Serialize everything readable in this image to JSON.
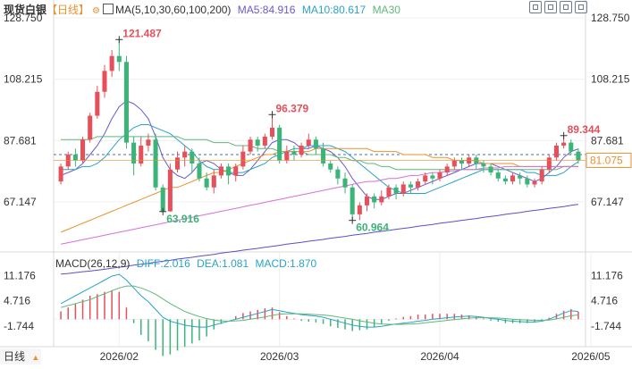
{
  "header": {
    "instrument": "现货白银",
    "period": "【日线】",
    "indicator_label": "MA(5,10,30,60,100,200)",
    "ma5": "MA5:84.916",
    "ma10": "MA10:80.617",
    "ma30": "MA30"
  },
  "macd_header": {
    "label": "MACD(26,12,9)",
    "diff": "DIFF:2.016",
    "dea": "DEA:1.081",
    "macd": "MACD:1.870"
  },
  "footer": {
    "period_button": "日线",
    "period_arrow": "▲"
  },
  "toolbar_icons": [
    "crosshair-icon",
    "zoom-in-icon",
    "zoom-out-icon",
    "fullscreen-icon"
  ],
  "colors": {
    "up": "#e6505a",
    "down": "#3cb478",
    "ma5": "#6a5acd",
    "ma10": "#29a3c4",
    "ma30": "#5fb87a",
    "ma60": "#e8922e",
    "ma100": "#d96fd9",
    "ma200": "#5b4fc7",
    "current_price": "#e8922e",
    "dashed_level": "#4a6fa5"
  },
  "chart_data": {
    "type": "candlestick",
    "price_axis": {
      "ticks": [
        "128.750",
        "108.215",
        "87.681",
        "67.147"
      ],
      "ylim": [
        51,
        128.75
      ]
    },
    "date_axis": {
      "ticks": [
        "2026/02",
        "2026/03",
        "2026/04",
        "2026/05"
      ]
    },
    "annotations": [
      {
        "text": "121.487",
        "value": 121.487,
        "kind": "high"
      },
      {
        "text": "63.916",
        "value": 63.916,
        "kind": "low"
      },
      {
        "text": "96.379",
        "value": 96.379,
        "kind": "high"
      },
      {
        "text": "60.964",
        "value": 60.964,
        "kind": "low"
      },
      {
        "text": "89.344",
        "value": 89.344,
        "kind": "high"
      }
    ],
    "current_price": {
      "text": "81.075",
      "value": 81.075
    },
    "dashed_level": 83.0,
    "candles": [
      [
        74,
        79,
        73,
        80
      ],
      [
        79,
        83,
        78,
        84
      ],
      [
        83,
        81,
        79,
        85
      ],
      [
        81,
        88,
        80,
        89
      ],
      [
        88,
        96,
        87,
        97
      ],
      [
        96,
        104,
        95,
        106
      ],
      [
        104,
        111,
        102,
        113
      ],
      [
        111,
        116,
        109,
        118
      ],
      [
        116,
        114,
        111,
        121.5
      ],
      [
        114,
        87,
        85,
        116
      ],
      [
        87,
        80,
        76,
        89
      ],
      [
        80,
        86,
        79,
        89
      ],
      [
        86,
        88,
        84,
        90
      ],
      [
        88,
        72,
        71,
        90
      ],
      [
        72,
        64,
        63.9,
        73
      ],
      [
        64,
        78,
        63.9,
        80
      ],
      [
        78,
        82,
        77,
        84
      ],
      [
        82,
        84,
        79,
        86
      ],
      [
        84,
        80,
        77,
        85
      ],
      [
        80,
        75,
        74,
        82
      ],
      [
        75,
        72,
        71,
        77
      ],
      [
        72,
        76,
        70,
        78
      ],
      [
        76,
        79,
        75,
        80
      ],
      [
        79,
        76,
        73,
        80
      ],
      [
        76,
        79,
        74,
        80
      ],
      [
        79,
        84,
        78,
        86
      ],
      [
        84,
        88,
        83,
        89
      ],
      [
        88,
        86,
        84,
        89
      ],
      [
        86,
        89,
        85,
        90
      ],
      [
        89,
        92,
        88,
        96.4
      ],
      [
        92,
        81,
        80,
        93
      ],
      [
        81,
        84,
        80,
        86
      ],
      [
        84,
        83,
        81,
        86
      ],
      [
        83,
        86,
        82,
        87
      ],
      [
        86,
        88,
        85,
        90
      ],
      [
        88,
        85,
        83,
        89
      ],
      [
        85,
        80,
        79,
        87
      ],
      [
        80,
        78,
        77,
        81
      ],
      [
        78,
        75,
        73,
        79
      ],
      [
        75,
        72,
        70,
        77
      ],
      [
        72,
        63,
        61,
        73
      ],
      [
        63,
        66,
        61,
        67
      ],
      [
        66,
        69,
        64,
        70
      ],
      [
        69,
        67,
        65,
        70
      ],
      [
        67,
        69,
        66,
        71
      ],
      [
        69,
        72,
        68,
        73
      ],
      [
        72,
        70,
        68,
        73
      ],
      [
        70,
        73,
        69,
        74
      ],
      [
        73,
        72,
        70,
        74
      ],
      [
        72,
        74,
        71,
        75
      ],
      [
        74,
        76,
        73,
        77
      ],
      [
        76,
        75,
        73,
        77
      ],
      [
        75,
        77,
        74,
        78
      ],
      [
        77,
        79,
        76,
        80
      ],
      [
        79,
        81,
        78,
        82
      ],
      [
        81,
        80,
        78,
        82
      ],
      [
        80,
        82,
        79,
        83
      ],
      [
        82,
        80,
        78,
        83
      ],
      [
        80,
        79,
        77,
        81
      ],
      [
        79,
        77,
        76,
        80
      ],
      [
        77,
        75,
        74,
        78
      ],
      [
        75,
        74,
        73,
        76
      ],
      [
        74,
        76,
        73,
        77
      ],
      [
        76,
        75,
        73,
        77
      ],
      [
        75,
        73,
        72,
        76
      ],
      [
        73,
        74,
        72,
        75
      ],
      [
        74,
        78,
        73,
        79
      ],
      [
        78,
        82,
        77,
        83
      ],
      [
        82,
        86,
        81,
        87
      ],
      [
        86,
        87,
        85,
        89.3
      ],
      [
        87,
        84,
        83,
        88
      ],
      [
        84,
        81,
        80,
        85
      ]
    ],
    "ma_series": [
      {
        "name": "MA5",
        "values": [
          76,
          77,
          78,
          80,
          83,
          86,
          90,
          95,
          99,
          101,
          100,
          98,
          95,
          89,
          82,
          78,
          76,
          75,
          77,
          80,
          81,
          80,
          78,
          77,
          76,
          76,
          78,
          81,
          84,
          87,
          88,
          88,
          87,
          85,
          85,
          86,
          85,
          84,
          82,
          79,
          75,
          72,
          69,
          68,
          68,
          69,
          70,
          70,
          71,
          72,
          73,
          74,
          75,
          76,
          77,
          78,
          79,
          80,
          80,
          80,
          79,
          78,
          77,
          76,
          75,
          74,
          75,
          77,
          79,
          82,
          84,
          84.9
        ]
      },
      {
        "name": "MA10",
        "values": [
          78,
          78,
          78,
          79,
          79,
          80,
          82,
          85,
          88,
          90,
          92,
          93,
          93,
          92,
          91,
          90,
          88,
          86,
          84,
          81,
          79,
          78,
          78,
          77,
          77,
          77,
          78,
          79,
          80,
          82,
          83,
          84,
          85,
          85,
          86,
          86,
          86,
          86,
          85,
          84,
          82,
          80,
          78,
          76,
          74,
          72,
          71,
          70,
          70,
          70,
          70,
          71,
          72,
          73,
          74,
          75,
          76,
          77,
          78,
          78,
          78,
          78,
          78,
          78,
          77,
          77,
          76,
          76,
          76,
          77,
          79,
          80.6
        ]
      },
      {
        "name": "MA30",
        "values": [
          88,
          88,
          88,
          88,
          88,
          89,
          89,
          89,
          89,
          89,
          89,
          89,
          89,
          89,
          89,
          89,
          89,
          88,
          88,
          88,
          88,
          87,
          87,
          87,
          86,
          86,
          86,
          85,
          85,
          85,
          84,
          84,
          84,
          84,
          83,
          83,
          83,
          83,
          82,
          82,
          81,
          81,
          80,
          80,
          79,
          79,
          78,
          78,
          78,
          78,
          78,
          78,
          78,
          78,
          78,
          78,
          78,
          78,
          78,
          78,
          78,
          78,
          78,
          78,
          78,
          78,
          78,
          78,
          78,
          79,
          79,
          79
        ]
      },
      {
        "name": "MA60",
        "values": [
          57,
          58,
          59,
          60,
          61,
          62,
          63,
          64,
          65,
          66,
          67,
          68,
          69,
          70,
          71,
          72,
          72,
          73,
          74,
          75,
          76,
          77,
          77,
          78,
          79,
          80,
          81,
          82,
          83,
          83,
          84,
          84,
          84,
          84,
          84,
          85,
          85,
          85,
          85,
          85,
          85,
          85,
          85,
          84,
          84,
          84,
          84,
          83,
          83,
          83,
          83,
          82,
          82,
          82,
          81,
          81,
          81,
          81,
          80,
          80,
          80,
          80,
          80,
          79,
          79,
          79,
          79,
          79,
          79,
          79,
          79,
          79
        ]
      },
      {
        "name": "MA100",
        "values": [
          53,
          53.5,
          54,
          54.5,
          55,
          55.5,
          56,
          56.5,
          57,
          57.5,
          58,
          58.5,
          59,
          59.5,
          60,
          60.5,
          61,
          61.5,
          62,
          62.5,
          63,
          63.5,
          64,
          64.5,
          65,
          65.5,
          66,
          66.5,
          67,
          67.5,
          68,
          68.5,
          69,
          69.5,
          70,
          70.5,
          71,
          71.5,
          72,
          72.5,
          73,
          73.5,
          74,
          74,
          74.5,
          75,
          75,
          75.5,
          76,
          76,
          76.5,
          77,
          77,
          77.5,
          77.5,
          78,
          78,
          78,
          78.5,
          78.5,
          78.5,
          79,
          79,
          79,
          79,
          79,
          79,
          79,
          79,
          79,
          79,
          79
        ]
      },
      {
        "name": "MA200",
        "values": [
          43,
          43.2,
          43.5,
          43.8,
          44,
          44.3,
          44.6,
          45,
          45.3,
          45.6,
          46,
          46.3,
          46.6,
          47,
          47.3,
          47.6,
          48,
          48.3,
          48.6,
          49,
          49.3,
          49.6,
          50,
          50.3,
          50.6,
          51,
          51.3,
          51.6,
          52,
          52.3,
          52.6,
          53,
          53.3,
          53.6,
          54,
          54.3,
          54.6,
          55,
          55.3,
          55.6,
          56,
          56.3,
          56.6,
          57,
          57.3,
          57.6,
          58,
          58.3,
          58.6,
          59,
          59.3,
          59.6,
          60,
          60.3,
          60.6,
          61,
          61.3,
          61.6,
          62,
          62.3,
          62.6,
          63,
          63.3,
          63.6,
          64,
          64.3,
          64.6,
          65,
          65.3,
          65.6,
          66,
          66.3
        ]
      }
    ],
    "macd": {
      "axis_ticks": [
        "11.176",
        "4.716",
        "-1.744"
      ],
      "ylim": [
        -7,
        14
      ],
      "diff": [
        4,
        5,
        6,
        7,
        8,
        9,
        10,
        11,
        11.5,
        10,
        8,
        6,
        4.5,
        2.5,
        0.5,
        -0.5,
        -1,
        -1.5,
        -1.8,
        -2,
        -2,
        -1.5,
        -1,
        -0.5,
        0,
        0.5,
        1,
        1.5,
        2,
        2.5,
        2.2,
        1.8,
        1.5,
        1.2,
        1,
        0.8,
        0.5,
        0,
        -0.5,
        -1,
        -1.5,
        -1.8,
        -2,
        -2,
        -1.8,
        -1.5,
        -1.2,
        -1,
        -0.8,
        -0.5,
        -0.3,
        0,
        0.2,
        0.4,
        0.6,
        0.7,
        0.8,
        0.7,
        0.5,
        0.2,
        0,
        -0.3,
        -0.5,
        -0.6,
        -0.7,
        -0.7,
        -0.5,
        0,
        0.8,
        1.6,
        2.2,
        2.0
      ],
      "dea": [
        3,
        3.5,
        4,
        4.5,
        5,
        5.8,
        6.5,
        7.3,
        8,
        8.5,
        8.5,
        8,
        7.3,
        6.4,
        5.2,
        4,
        3,
        2,
        1.3,
        0.7,
        0.2,
        -0.2,
        -0.4,
        -0.5,
        -0.4,
        -0.3,
        0,
        0.3,
        0.6,
        1,
        1.3,
        1.4,
        1.4,
        1.4,
        1.3,
        1.2,
        1.1,
        0.9,
        0.6,
        0.3,
        0,
        -0.4,
        -0.7,
        -1,
        -1.2,
        -1.3,
        -1.3,
        -1.3,
        -1.2,
        -1.1,
        -0.9,
        -0.7,
        -0.5,
        -0.3,
        -0.1,
        0.1,
        0.3,
        0.4,
        0.4,
        0.4,
        0.3,
        0.2,
        0,
        -0.1,
        -0.2,
        -0.3,
        -0.3,
        -0.2,
        0.1,
        0.5,
        0.9,
        1.1
      ],
      "hist": [
        2,
        3,
        4,
        5,
        6,
        6.4,
        7,
        7.4,
        7,
        3,
        -1,
        -4,
        -5.6,
        -7.8,
        -9.4,
        -9,
        -8,
        -7,
        -6.2,
        -5.4,
        -4.4,
        -2.6,
        -1.2,
        0,
        0.8,
        1.6,
        2,
        2.4,
        2.8,
        3,
        1.8,
        0.8,
        0.2,
        -0.4,
        -0.6,
        -0.8,
        -1.2,
        -1.8,
        -2.2,
        -2.6,
        -3,
        -2.8,
        -2.6,
        -2,
        -1.2,
        -0.4,
        0.2,
        0.6,
        0.8,
        1.2,
        1.2,
        1.4,
        1.4,
        1.4,
        1.4,
        1.2,
        1,
        0.6,
        0.2,
        -0.4,
        -0.6,
        -1,
        -1,
        -1,
        -1,
        -0.8,
        -0.4,
        0.4,
        1.4,
        2.2,
        2.6,
        1.9
      ]
    }
  }
}
